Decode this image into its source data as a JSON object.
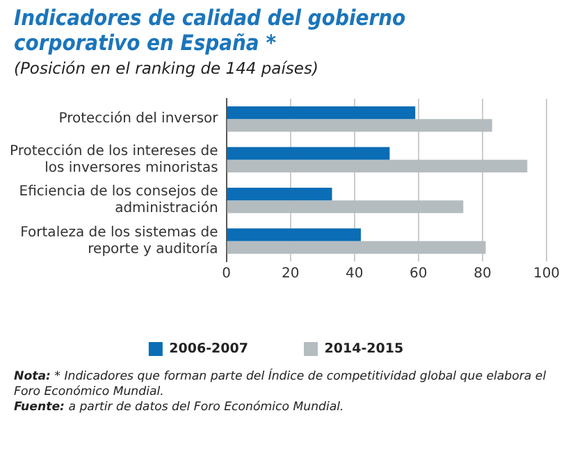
{
  "chart_data": {
    "type": "bar",
    "orientation": "horizontal",
    "title": "Indicadores de calidad del gobierno corporativo en España *",
    "subtitle": "(Posición en el ranking de 144 países)",
    "categories": [
      "Protección del inversor",
      "Protección de los intereses de los inversores minoristas",
      "Eficiencia de los consejos de administración",
      "Fortaleza de los sistemas de reporte y auditoría"
    ],
    "series": [
      {
        "name": "2006-2007",
        "color": "#0a6db5",
        "values": [
          59,
          51,
          33,
          42
        ]
      },
      {
        "name": "2014-2015",
        "color": "#b4bcc0",
        "values": [
          83,
          94,
          74,
          81
        ]
      }
    ],
    "xlim": [
      0,
      100
    ],
    "xticks": [
      0,
      20,
      40,
      60,
      80,
      100
    ],
    "grid": "x",
    "legend": "bottom",
    "annotations": [
      "Nota: * Indicadores que forman parte del Índice de competitividad global que elabora el Foro Económico Mundial.",
      "Fuente: a partir de datos del Foro Económico Mundial."
    ]
  }
}
